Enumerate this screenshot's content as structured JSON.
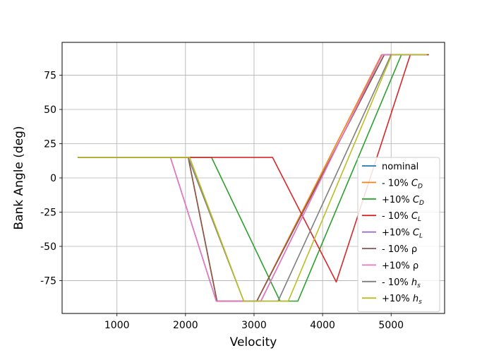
{
  "chart_data": {
    "type": "line",
    "title": "",
    "xlabel": "Velocity",
    "ylabel": "Bank Angle (deg)",
    "xlim": [
      200,
      5780
    ],
    "ylim": [
      -99,
      99
    ],
    "xticks": [
      1000,
      2000,
      3000,
      4000,
      5000
    ],
    "yticks": [
      -75,
      -50,
      -25,
      0,
      25,
      50,
      75
    ],
    "grid": true,
    "legend_position": "lower-right",
    "series": [
      {
        "name": "nominal",
        "label_main": "nominal",
        "label_sub": "",
        "color": "#1f77b4",
        "x": [
          430,
          2040,
          2460,
          3040,
          4900,
          5420
        ],
        "y": [
          15,
          15,
          -90,
          -90,
          90,
          90
        ]
      },
      {
        "name": "- 10% C_D",
        "label_main": "- 10% C",
        "label_sub": "D",
        "color": "#ff7f0e",
        "x": [
          430,
          2040,
          2460,
          3040,
          4860,
          5400
        ],
        "y": [
          15,
          15,
          -90,
          -90,
          90,
          90
        ]
      },
      {
        "name": "+10% C_D",
        "label_main": "+10% C",
        "label_sub": "D",
        "color": "#2ca02c",
        "x": [
          430,
          2380,
          3380,
          3640,
          5150,
          5550
        ],
        "y": [
          15,
          15,
          -90,
          -90,
          90,
          90
        ]
      },
      {
        "name": "- 10% C_L",
        "label_main": "- 10% C",
        "label_sub": "L",
        "color": "#d62728",
        "x": [
          430,
          3270,
          4200,
          5280,
          5550
        ],
        "y": [
          15,
          15,
          -76,
          90,
          90
        ]
      },
      {
        "name": "+10% C_L",
        "label_main": "+10% C",
        "label_sub": "L",
        "color": "#9467bd",
        "x": [
          430,
          1780,
          2450,
          3100,
          4870,
          5420
        ],
        "y": [
          15,
          15,
          -90,
          -90,
          90,
          90
        ]
      },
      {
        "name": "- 10% ρ",
        "label_main": "- 10% ρ",
        "label_sub": "",
        "color": "#8c564b",
        "x": [
          430,
          2040,
          2460,
          3040,
          4900,
          5420
        ],
        "y": [
          15,
          15,
          -90,
          -90,
          90,
          90
        ]
      },
      {
        "name": "+10% ρ",
        "label_main": "+10% ρ",
        "label_sub": "",
        "color": "#e377c2",
        "x": [
          430,
          1780,
          2450,
          3100,
          4870,
          5420
        ],
        "y": [
          15,
          15,
          -90,
          -90,
          90,
          90
        ]
      },
      {
        "name": "- 10% h_s",
        "label_main": "- 10% h",
        "label_sub": "s",
        "color": "#7f7f7f",
        "x": [
          430,
          2040,
          2850,
          3350,
          5000,
          5520
        ],
        "y": [
          15,
          15,
          -90,
          -90,
          90,
          90
        ]
      },
      {
        "name": "+10% h_s",
        "label_main": "+10% h",
        "label_sub": "s",
        "color": "#bcbd22",
        "x": [
          430,
          2060,
          2850,
          3500,
          5010,
          5520
        ],
        "y": [
          15,
          15,
          -90,
          -90,
          90,
          90
        ]
      }
    ]
  }
}
